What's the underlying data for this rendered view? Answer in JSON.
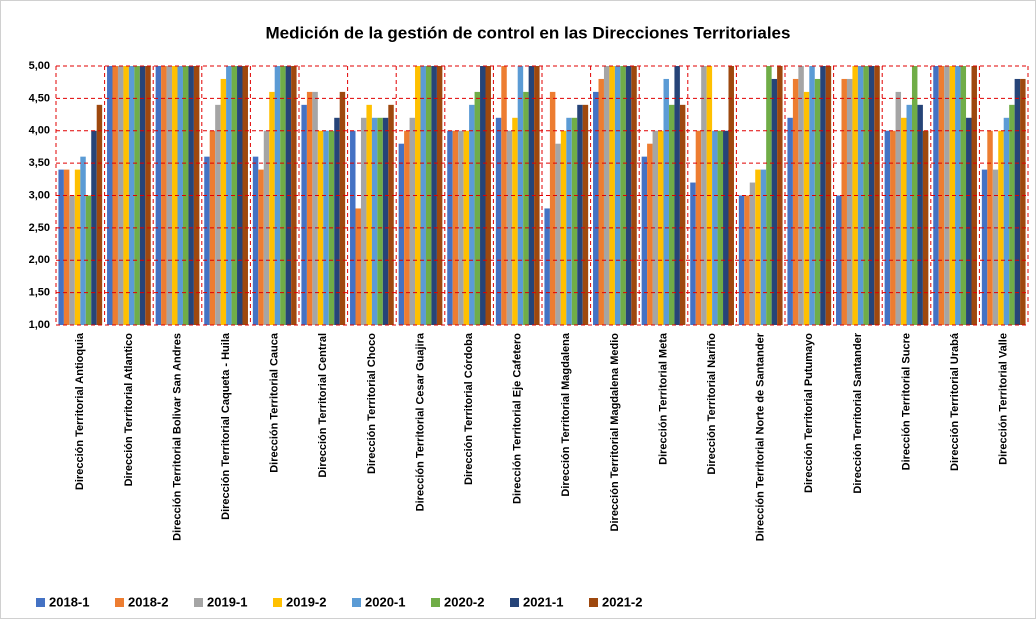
{
  "chart_data": {
    "type": "bar",
    "title": "Medición de la gestión de control en las Direcciones Territoriales",
    "categories": [
      "Dirección Territorial Antioquia",
      "Dirección Territorial Atlantico",
      "Dirección Territorial Bolivar San Andres",
      "Dirección Territorial Caqueta - Huila",
      "Dirección Territorial Cauca",
      "Dirección Territorial Central",
      "Dirección Territorial Choco",
      "Dirección Territorial Cesar Guajira",
      "Dirección Territorial Córdoba",
      "Dirección Territorial Eje  Cafetero",
      "Dirección Territorial Magdalena",
      "Dirección Territorial Magdalena Medio",
      "Dirección Territorial Meta",
      "Dirección Territorial Nariño",
      "Dirección Territorial Norte de Santander",
      "Dirección Territorial Putumayo",
      "Dirección Territorial Santander",
      "Dirección Territorial Sucre",
      "Dirección Territorial Urabá",
      "Dirección Territorial Valle"
    ],
    "series": [
      {
        "name": "2018-1",
        "color": "#4472c4",
        "values": [
          3.4,
          5,
          5,
          3.6,
          3.6,
          4.4,
          4.0,
          3.8,
          4.0,
          4.2,
          2.8,
          4.6,
          3.6,
          3.2,
          3.0,
          4.2,
          3.0,
          4.0,
          5,
          3.4
        ]
      },
      {
        "name": "2018-2",
        "color": "#ed7d31",
        "values": [
          3.4,
          5,
          5,
          4.0,
          3.4,
          4.6,
          2.8,
          4.0,
          4.0,
          5,
          4.6,
          4.8,
          3.8,
          4.0,
          3.0,
          4.8,
          4.8,
          4.0,
          5,
          4.0
        ]
      },
      {
        "name": "2019-1",
        "color": "#a5a5a5",
        "values": [
          3.0,
          5,
          5,
          4.4,
          4.0,
          4.6,
          4.2,
          4.2,
          4.0,
          4.0,
          3.8,
          5,
          4.0,
          5,
          3.2,
          5,
          4.8,
          4.6,
          5,
          3.4
        ]
      },
      {
        "name": "2019-2",
        "color": "#ffc000",
        "values": [
          3.4,
          5,
          5,
          4.8,
          4.6,
          4.0,
          4.4,
          5,
          4.0,
          4.2,
          4.0,
          5,
          4.0,
          5,
          3.4,
          4.6,
          5,
          4.2,
          5,
          4.0
        ]
      },
      {
        "name": "2020-1",
        "color": "#5b9bd5",
        "values": [
          3.6,
          5,
          5,
          5,
          5,
          4.0,
          4.2,
          5,
          4.4,
          5,
          4.2,
          5,
          4.8,
          4.0,
          3.4,
          5,
          5,
          4.4,
          5,
          4.2
        ]
      },
      {
        "name": "2020-2",
        "color": "#70ad47",
        "values": [
          3.0,
          5,
          5,
          5,
          5,
          4.0,
          4.2,
          5,
          4.6,
          4.6,
          4.2,
          5,
          4.4,
          4.0,
          5,
          4.8,
          5,
          5,
          5,
          4.4
        ]
      },
      {
        "name": "2021-1",
        "color": "#264478",
        "values": [
          4.0,
          5,
          5,
          5,
          5,
          4.2,
          4.2,
          5,
          5,
          5,
          4.4,
          5,
          5,
          4.0,
          4.8,
          5,
          5,
          4.4,
          4.2,
          4.8
        ]
      },
      {
        "name": "2021-2",
        "color": "#9e480e",
        "values": [
          4.4,
          5,
          5,
          5,
          5,
          4.6,
          4.4,
          5,
          5,
          5,
          4.4,
          5,
          4.4,
          5,
          5,
          5,
          5,
          4.0,
          5,
          4.8
        ]
      }
    ],
    "ylim": [
      1,
      5
    ],
    "yticks": [
      {
        "value": 1,
        "label": "1,00"
      },
      {
        "value": 1.5,
        "label": "1,50"
      },
      {
        "value": 2,
        "label": "2,00"
      },
      {
        "value": 2.5,
        "label": "2,50"
      },
      {
        "value": 3,
        "label": "3,00"
      },
      {
        "value": 3.5,
        "label": "3,50"
      },
      {
        "value": 4,
        "label": "4,00"
      },
      {
        "value": 4.5,
        "label": "4,50"
      },
      {
        "value": 5,
        "label": "5,00"
      }
    ],
    "grid": true,
    "legend": "bottom"
  }
}
